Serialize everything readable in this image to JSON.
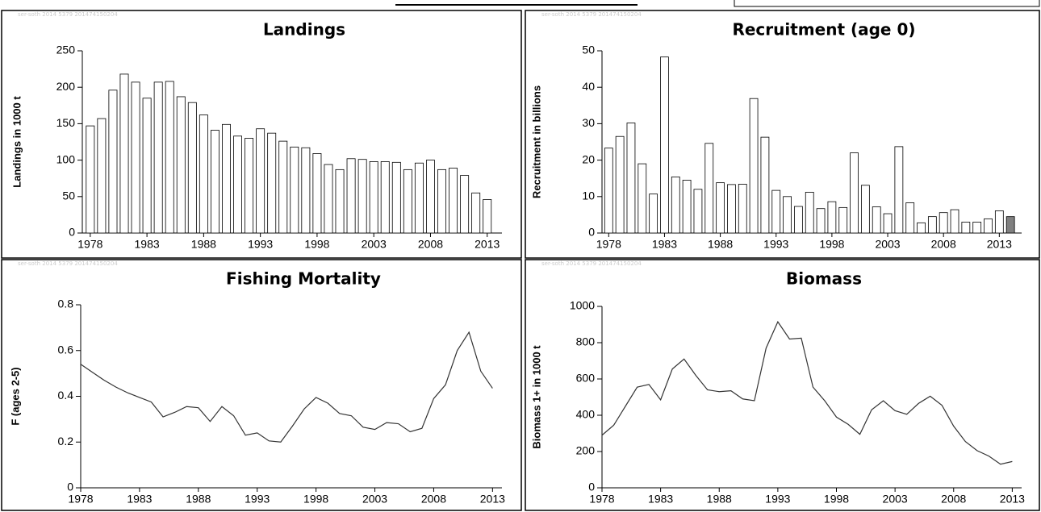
{
  "chart_data": [
    {
      "type": "bar",
      "title": "Landings",
      "y_label": "Landings in 1000 t",
      "watermark": "ser-soth 2014 5379 201474150204",
      "x": [
        1978,
        1979,
        1980,
        1981,
        1982,
        1983,
        1984,
        1985,
        1986,
        1987,
        1988,
        1989,
        1990,
        1991,
        1992,
        1993,
        1994,
        1995,
        1996,
        1997,
        1998,
        1999,
        2000,
        2001,
        2002,
        2003,
        2004,
        2005,
        2006,
        2007,
        2008,
        2009,
        2010,
        2011,
        2012,
        2013
      ],
      "values": [
        147,
        157,
        196,
        218,
        207,
        185,
        207,
        208,
        187,
        179,
        162,
        141,
        149,
        133,
        130,
        143,
        137,
        126,
        118,
        117,
        109,
        94,
        87,
        102,
        101,
        98,
        98,
        97,
        87,
        96,
        100,
        87,
        89,
        79,
        55,
        46
      ],
      "color": "#ffffff",
      "xlim": [
        1977.3,
        2014.3
      ],
      "xticks": [
        1978,
        1983,
        1988,
        1993,
        1998,
        2003,
        2008,
        2013
      ],
      "ylim": [
        0,
        250
      ],
      "yticks": [
        0,
        50,
        100,
        150,
        200,
        250
      ]
    },
    {
      "type": "bar",
      "title": "Recruitment (age 0)",
      "y_label": "Recruitment in billions",
      "watermark": "ser-soth 2014 5379 201474150204",
      "x": [
        1978,
        1979,
        1980,
        1981,
        1982,
        1983,
        1984,
        1985,
        1986,
        1987,
        1988,
        1989,
        1990,
        1991,
        1992,
        1993,
        1994,
        1995,
        1996,
        1997,
        1998,
        1999,
        2000,
        2001,
        2002,
        2003,
        2004,
        2005,
        2006,
        2007,
        2008,
        2009,
        2010,
        2011,
        2012,
        2013,
        2014
      ],
      "values": [
        23.3,
        26.5,
        30.2,
        19,
        10.7,
        48.3,
        15.4,
        14.5,
        12,
        24.6,
        13.8,
        13.3,
        13.4,
        36.9,
        26.3,
        11.7,
        10,
        7.3,
        11.2,
        6.7,
        8.6,
        7,
        22,
        13.1,
        7.2,
        5.3,
        23.7,
        8.3,
        2.8,
        4.5,
        5.6,
        6.4,
        3,
        3,
        3.9,
        6.1,
        4.5
      ],
      "colors": [
        "#ffffff",
        "#ffffff",
        "#ffffff",
        "#ffffff",
        "#ffffff",
        "#ffffff",
        "#ffffff",
        "#ffffff",
        "#ffffff",
        "#ffffff",
        "#ffffff",
        "#ffffff",
        "#ffffff",
        "#ffffff",
        "#ffffff",
        "#ffffff",
        "#ffffff",
        "#ffffff",
        "#ffffff",
        "#ffffff",
        "#ffffff",
        "#ffffff",
        "#ffffff",
        "#ffffff",
        "#ffffff",
        "#ffffff",
        "#ffffff",
        "#ffffff",
        "#ffffff",
        "#ffffff",
        "#ffffff",
        "#ffffff",
        "#ffffff",
        "#ffffff",
        "#ffffff",
        "#ffffff",
        "#808080"
      ],
      "xlim": [
        1977.4,
        2015
      ],
      "xticks": [
        1978,
        1983,
        1988,
        1993,
        1998,
        2003,
        2008,
        2013
      ],
      "ylim": [
        0,
        50
      ],
      "yticks": [
        0,
        10,
        20,
        30,
        40,
        50
      ]
    },
    {
      "type": "line",
      "title": "Fishing Mortality",
      "y_label": "F (ages 2-5)",
      "watermark": "ser-soth 2014 5379 201474150204",
      "x": [
        1978,
        1979,
        1980,
        1981,
        1982,
        1983,
        1984,
        1985,
        1986,
        1987,
        1988,
        1989,
        1990,
        1991,
        1992,
        1993,
        1994,
        1995,
        1996,
        1997,
        1998,
        1999,
        2000,
        2001,
        2002,
        2003,
        2004,
        2005,
        2006,
        2007,
        2008,
        2009,
        2010,
        2011,
        2012,
        2013
      ],
      "values": [
        0.54,
        0.505,
        0.47,
        0.44,
        0.415,
        0.395,
        0.375,
        0.31,
        0.33,
        0.355,
        0.35,
        0.29,
        0.355,
        0.315,
        0.23,
        0.24,
        0.205,
        0.2,
        0.27,
        0.345,
        0.395,
        0.37,
        0.325,
        0.315,
        0.265,
        0.255,
        0.285,
        0.28,
        0.245,
        0.26,
        0.39,
        0.45,
        0.6,
        0.68,
        0.51,
        0.435
      ],
      "color": "#333333",
      "xlim": [
        1978,
        2013.8
      ],
      "xticks": [
        1978,
        1983,
        1988,
        1993,
        1998,
        2003,
        2008,
        2013
      ],
      "ylim": [
        0,
        0.8
      ],
      "yticks": [
        0,
        0.2,
        0.4,
        0.6,
        0.8
      ]
    },
    {
      "type": "line",
      "title": "Biomass",
      "y_label": "Biomass 1+ in 1000 t",
      "watermark": "ser-soth 2014 5379 201474150204",
      "x": [
        1978,
        1979,
        1980,
        1981,
        1982,
        1983,
        1984,
        1985,
        1986,
        1987,
        1988,
        1989,
        1990,
        1991,
        1992,
        1993,
        1994,
        1995,
        1996,
        1997,
        1998,
        1999,
        2000,
        2001,
        2002,
        2003,
        2004,
        2005,
        2006,
        2007,
        2008,
        2009,
        2010,
        2011,
        2012,
        2013
      ],
      "values": [
        290,
        345,
        450,
        555,
        570,
        485,
        655,
        710,
        620,
        540,
        530,
        535,
        490,
        480,
        770,
        915,
        820,
        825,
        555,
        480,
        390,
        350,
        295,
        430,
        480,
        425,
        405,
        465,
        505,
        455,
        340,
        255,
        205,
        175,
        130,
        145
      ],
      "color": "#333333",
      "xlim": [
        1978,
        2013.8
      ],
      "xticks": [
        1978,
        1983,
        1988,
        1993,
        1998,
        2003,
        2008,
        2013
      ],
      "ylim": [
        0,
        1000
      ],
      "yticks": [
        0,
        200,
        400,
        600,
        800,
        1000
      ]
    }
  ]
}
